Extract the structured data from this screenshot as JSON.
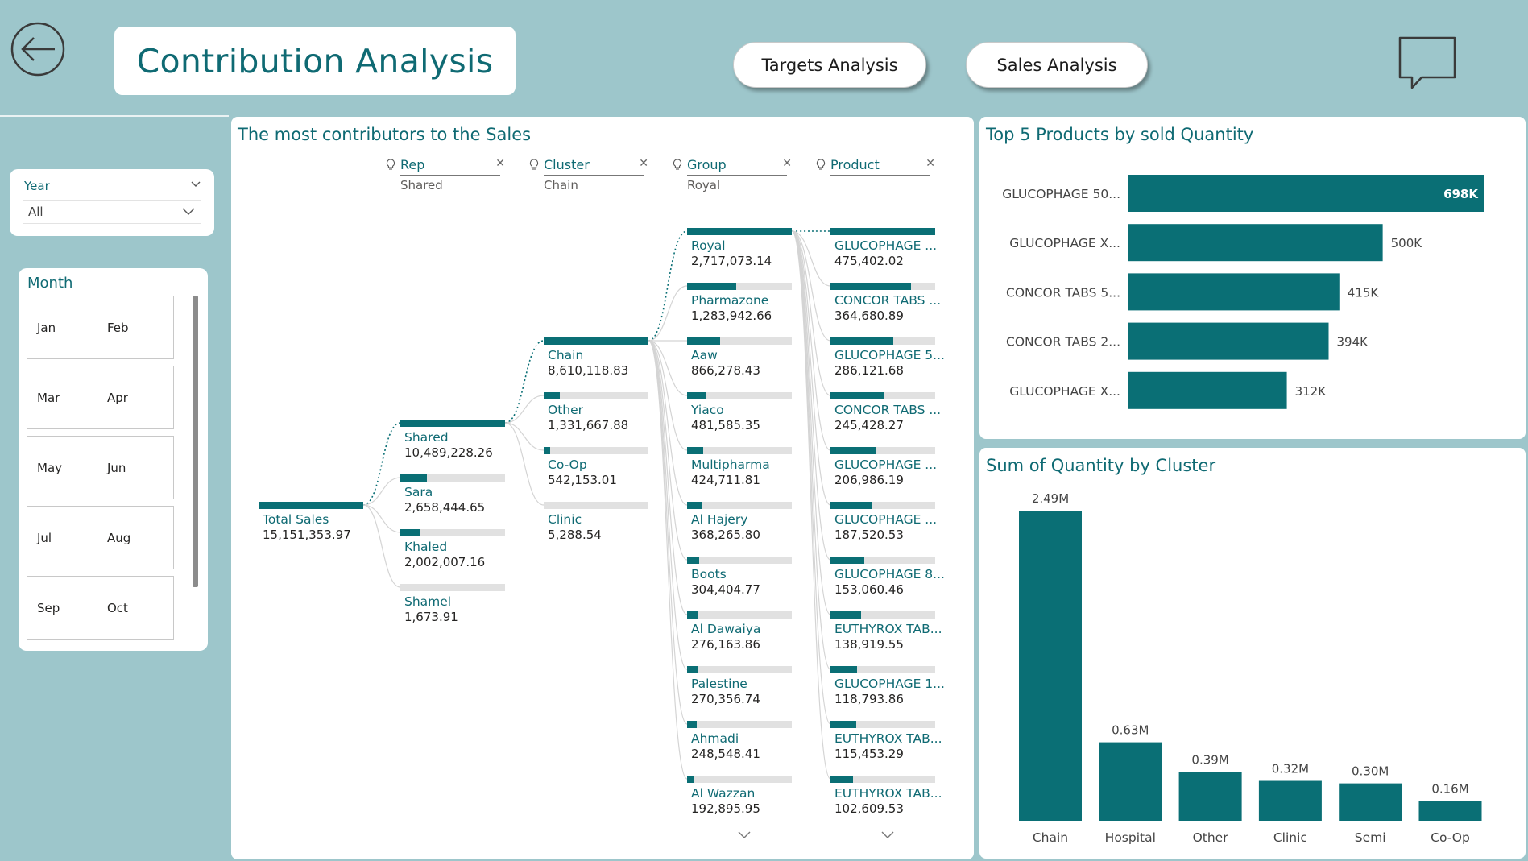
{
  "header": {
    "title": "Contribution Analysis",
    "buttons": {
      "targets": "Targets Analysis",
      "sales": "Sales Analysis"
    }
  },
  "filters": {
    "year": {
      "title": "Year",
      "value": "All"
    },
    "month": {
      "title": "Month",
      "items": [
        "Jan",
        "Feb",
        "Mar",
        "Apr",
        "May",
        "Jun",
        "Jul",
        "Aug",
        "Sep",
        "Oct"
      ]
    }
  },
  "tree": {
    "title": "The most contributors to the Sales",
    "root": {
      "label": "Total Sales",
      "value": "15,151,353.97",
      "share": 1
    },
    "columns": [
      {
        "header": "Rep",
        "selected": "Shared",
        "nodes": [
          {
            "label": "Shared",
            "value": "10,489,228.26",
            "share": 1
          },
          {
            "label": "Sara",
            "value": "2,658,444.65",
            "share": 0.253
          },
          {
            "label": "Khaled",
            "value": "2,002,007.16",
            "share": 0.191
          },
          {
            "label": "Shamel",
            "value": "1,673.91",
            "share": 0.0
          }
        ]
      },
      {
        "header": "Cluster",
        "selected": "Chain",
        "nodes": [
          {
            "label": "Chain",
            "value": "8,610,118.83",
            "share": 1
          },
          {
            "label": "Other",
            "value": "1,331,667.88",
            "share": 0.155
          },
          {
            "label": "Co-Op",
            "value": "542,153.01",
            "share": 0.063
          },
          {
            "label": "Clinic",
            "value": "5,288.54",
            "share": 0.0
          }
        ]
      },
      {
        "header": "Group",
        "selected": "Royal",
        "nodes": [
          {
            "label": "Royal",
            "value": "2,717,073.14",
            "share": 1
          },
          {
            "label": "Pharmazone",
            "value": "1,283,942.66",
            "share": 0.473
          },
          {
            "label": "Aaw",
            "value": "866,278.43",
            "share": 0.319
          },
          {
            "label": "Yiaco",
            "value": "481,585.35",
            "share": 0.177
          },
          {
            "label": "Multipharma",
            "value": "424,711.81",
            "share": 0.156
          },
          {
            "label": "Al Hajery",
            "value": "368,265.80",
            "share": 0.136
          },
          {
            "label": "Boots",
            "value": "304,404.77",
            "share": 0.112
          },
          {
            "label": "Al Dawaiya",
            "value": "276,163.86",
            "share": 0.102
          },
          {
            "label": "Palestine",
            "value": "270,356.74",
            "share": 0.1
          },
          {
            "label": "Ahmadi",
            "value": "248,548.41",
            "share": 0.091
          },
          {
            "label": "Al Wazzan",
            "value": "192,895.95",
            "share": 0.071
          }
        ]
      },
      {
        "header": "Product",
        "selected": "",
        "nodes": [
          {
            "label": "GLUCOPHAGE ...",
            "value": "475,402.02",
            "share": 1
          },
          {
            "label": "CONCOR TABS ...",
            "value": "364,680.89",
            "share": 0.767
          },
          {
            "label": "GLUCOPHAGE 5...",
            "value": "286,121.68",
            "share": 0.602
          },
          {
            "label": "CONCOR TABS ...",
            "value": "245,428.27",
            "share": 0.516
          },
          {
            "label": "GLUCOPHAGE ...",
            "value": "206,986.19",
            "share": 0.435
          },
          {
            "label": "GLUCOPHAGE ...",
            "value": "187,520.53",
            "share": 0.394
          },
          {
            "label": "GLUCOPHAGE 8...",
            "value": "153,060.46",
            "share": 0.322
          },
          {
            "label": "EUTHYROX TAB...",
            "value": "138,919.55",
            "share": 0.292
          },
          {
            "label": "GLUCOPHAGE 1...",
            "value": "118,793.86",
            "share": 0.25
          },
          {
            "label": "EUTHYROX TAB...",
            "value": "115,453.29",
            "share": 0.243
          },
          {
            "label": "EUTHYROX TAB...",
            "value": "102,609.53",
            "share": 0.216
          }
        ]
      }
    ]
  },
  "chart_data": [
    {
      "type": "bar",
      "orientation": "horizontal",
      "title": "Top 5 Products by sold Quantity",
      "categories": [
        "GLUCOPHAGE 50...",
        "GLUCOPHAGE X...",
        "CONCOR TABS 5...",
        "CONCOR TABS 2...",
        "GLUCOPHAGE X..."
      ],
      "values": [
        698000,
        500000,
        415000,
        394000,
        312000
      ],
      "data_labels": [
        "698K",
        "500K",
        "415K",
        "394K",
        "312K"
      ],
      "color": "#0a6f75",
      "xlim": [
        0,
        698000
      ]
    },
    {
      "type": "bar",
      "title": "Sum of Quantity by Cluster",
      "categories": [
        "Chain",
        "Hospital",
        "Other",
        "Clinic",
        "Semi",
        "Co-Op"
      ],
      "values": [
        2490000,
        630000,
        390000,
        320000,
        300000,
        160000
      ],
      "data_labels": [
        "2.49M",
        "0.63M",
        "0.39M",
        "0.32M",
        "0.30M",
        "0.16M"
      ],
      "color": "#0a6f75",
      "ylim": [
        0,
        2490000
      ]
    }
  ]
}
